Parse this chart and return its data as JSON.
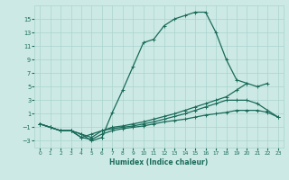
{
  "xlabel": "Humidex (Indice chaleur)",
  "xlim": [
    -0.5,
    23.5
  ],
  "ylim": [
    -4,
    17
  ],
  "yticks": [
    -3,
    -1,
    1,
    3,
    5,
    7,
    9,
    11,
    13,
    15
  ],
  "xticks": [
    0,
    1,
    2,
    3,
    4,
    5,
    6,
    7,
    8,
    9,
    10,
    11,
    12,
    13,
    14,
    15,
    16,
    17,
    18,
    19,
    20,
    21,
    22,
    23
  ],
  "bg_color": "#cce9e5",
  "grid_color": "#aad4ce",
  "line_color": "#1a6b5a",
  "line_width": 0.9,
  "marker": "+",
  "marker_size": 3,
  "lines": [
    {
      "x": [
        0,
        1,
        2,
        3,
        4,
        5,
        6,
        7,
        8,
        9,
        10,
        11,
        12,
        13,
        14,
        15,
        16,
        17,
        18,
        19,
        20,
        21,
        22,
        23
      ],
      "y": [
        -0.5,
        -1.0,
        -1.5,
        -1.5,
        -2.0,
        -3.0,
        -2.5,
        1.2,
        4.5,
        8.0,
        11.5,
        12.0,
        14.0,
        15.0,
        15.5,
        16.0,
        16.0,
        13.0,
        9.0,
        6.0,
        5.5,
        null,
        null,
        null
      ]
    },
    {
      "x": [
        0,
        1,
        2,
        3,
        4,
        5,
        6,
        7,
        8,
        9,
        10,
        11,
        12,
        13,
        14,
        15,
        16,
        17,
        18,
        19,
        20,
        21,
        22,
        23
      ],
      "y": [
        -0.5,
        -1.0,
        -1.5,
        -1.5,
        -2.0,
        -2.5,
        -1.5,
        -1.0,
        -0.8,
        -0.5,
        -0.2,
        0.2,
        0.6,
        1.0,
        1.5,
        2.0,
        2.5,
        3.0,
        3.5,
        4.5,
        5.5,
        5.0,
        5.5,
        null
      ]
    },
    {
      "x": [
        0,
        1,
        2,
        3,
        4,
        5,
        6,
        7,
        8,
        9,
        10,
        11,
        12,
        13,
        14,
        15,
        16,
        17,
        18,
        19,
        20,
        21,
        22,
        23
      ],
      "y": [
        -0.5,
        -1.0,
        -1.5,
        -1.5,
        -2.5,
        -2.0,
        -1.5,
        -1.2,
        -1.0,
        -0.8,
        -0.5,
        -0.2,
        0.2,
        0.6,
        1.0,
        1.5,
        2.0,
        2.5,
        3.0,
        3.0,
        3.0,
        2.5,
        1.5,
        0.5
      ]
    },
    {
      "x": [
        0,
        1,
        2,
        3,
        4,
        5,
        6,
        7,
        8,
        9,
        10,
        11,
        12,
        13,
        14,
        15,
        16,
        17,
        18,
        19,
        20,
        21,
        22,
        23
      ],
      "y": [
        -0.5,
        -1.0,
        -1.5,
        -1.5,
        -2.5,
        -2.8,
        -2.0,
        -1.5,
        -1.2,
        -1.0,
        -0.8,
        -0.5,
        -0.2,
        0.0,
        0.2,
        0.5,
        0.8,
        1.0,
        1.2,
        1.5,
        1.5,
        1.5,
        1.2,
        0.5
      ]
    }
  ]
}
